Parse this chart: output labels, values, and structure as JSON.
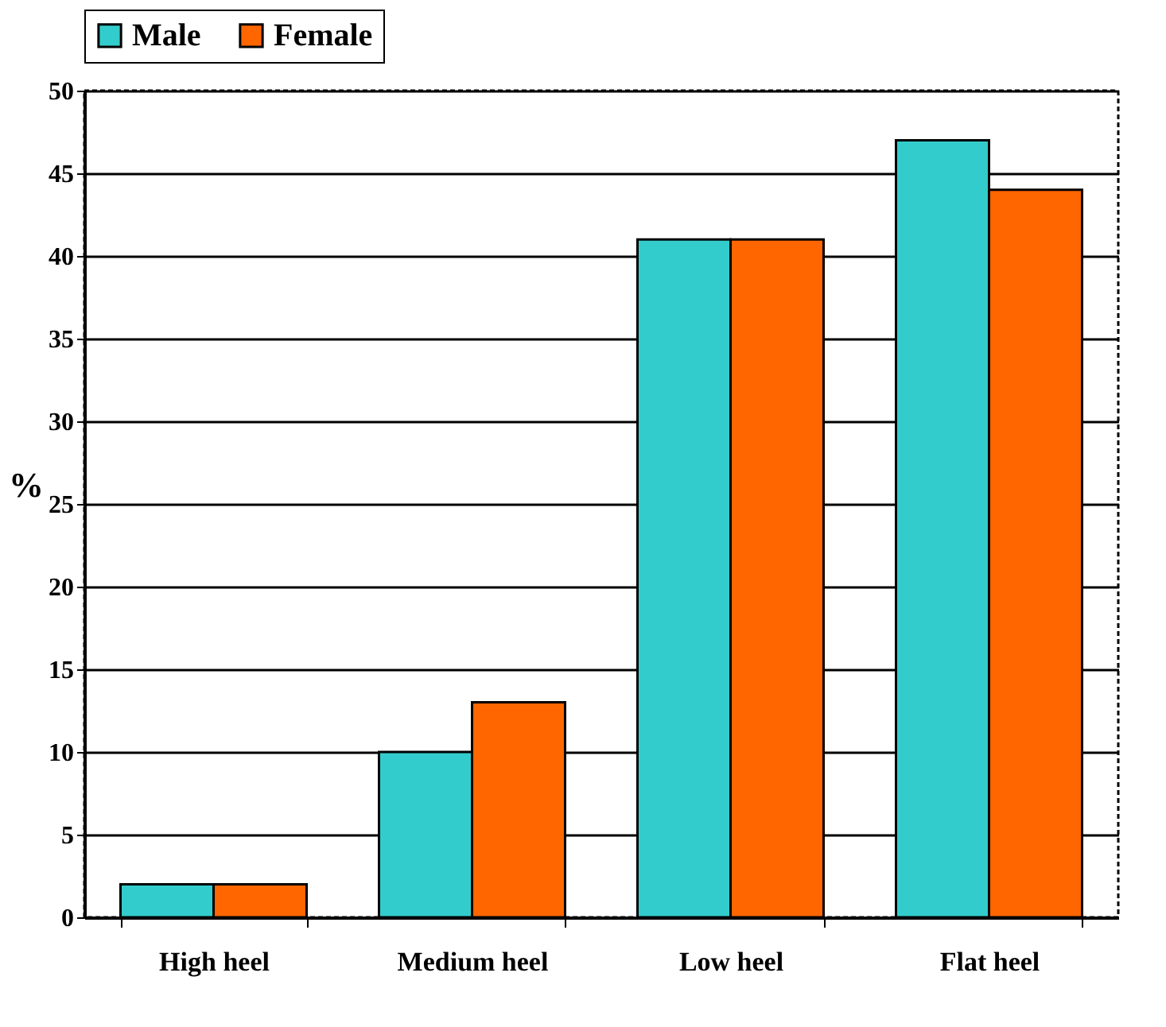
{
  "chart_data": {
    "type": "bar",
    "ylabel": "%",
    "categories": [
      "High heel",
      "Medium heel",
      "Low heel",
      "Flat heel"
    ],
    "series": [
      {
        "name": "Male",
        "color": "#33cccc",
        "values": [
          2,
          10,
          41,
          47
        ]
      },
      {
        "name": "Female",
        "color": "#ff6600",
        "values": [
          2,
          13,
          41,
          44
        ]
      }
    ],
    "ylim": [
      0,
      50
    ],
    "yticks": [
      0,
      5,
      10,
      15,
      20,
      25,
      30,
      35,
      40,
      45,
      50
    ],
    "grid": "y",
    "legend": "top"
  }
}
